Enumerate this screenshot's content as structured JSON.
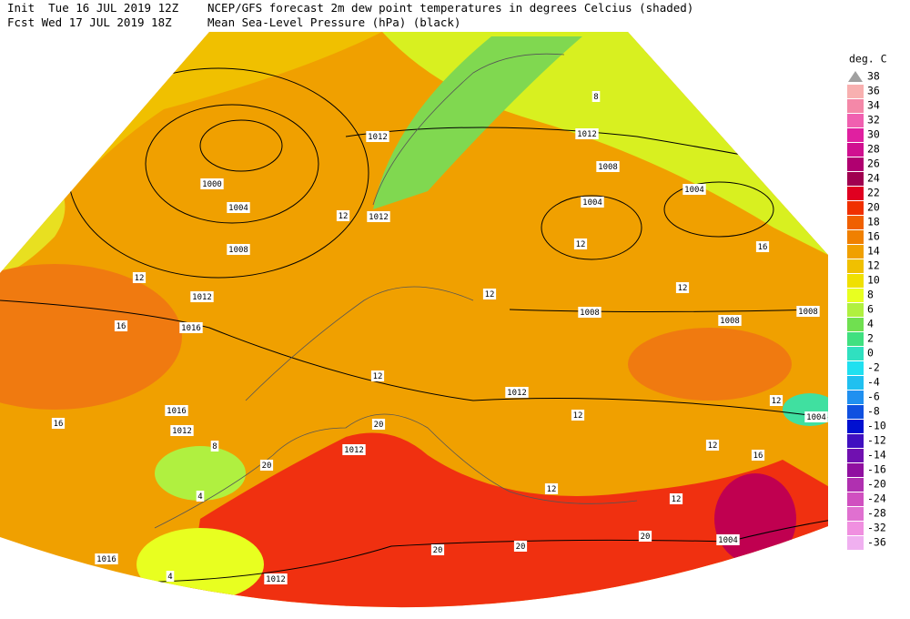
{
  "header": {
    "init": "Init  Tue 16 JUL 2019 12Z",
    "fcst": "Fcst Wed 17 JUL 2019 18Z",
    "title": "NCEP/GFS forecast 2m dew point temperatures in degrees Celcius (shaded)",
    "subtitle": "Mean Sea-Level Pressure (hPa) (black)"
  },
  "legend": {
    "title": "deg. C",
    "values": [
      38,
      36,
      34,
      32,
      30,
      28,
      26,
      24,
      22,
      20,
      18,
      16,
      14,
      12,
      10,
      8,
      6,
      4,
      2,
      0,
      -2,
      -4,
      -6,
      -8,
      -10,
      -12,
      -14,
      -16,
      -20,
      -24,
      -28,
      -32,
      -36
    ],
    "colors": [
      "#a0a0a0",
      "#f8b0b0",
      "#f488a8",
      "#f060b0",
      "#e020a0",
      "#d01090",
      "#b00070",
      "#a00050",
      "#e00020",
      "#f03000",
      "#f06000",
      "#f08000",
      "#f0a000",
      "#f0c000",
      "#f0e000",
      "#e8ff20",
      "#b0f040",
      "#70e050",
      "#40e080",
      "#30e0c0",
      "#20e0f0",
      "#20c0f0",
      "#2090f0",
      "#1050e0",
      "#0010d0",
      "#4010c0",
      "#7010b0",
      "#9010a0",
      "#b030b0",
      "#d050c0",
      "#e070d0",
      "#f090e0",
      "#f0b0f0"
    ]
  },
  "contour_labels": {
    "isobars": [
      "1012",
      "1012",
      "1008",
      "1000",
      "1004",
      "1004",
      "1004",
      "1008",
      "1012",
      "1016",
      "1012",
      "1008",
      "1008",
      "1008",
      "1016",
      "1012",
      "1012",
      "1012",
      "1004",
      "1016",
      "1012",
      "1004"
    ],
    "dew_point": [
      "12",
      "12",
      "16",
      "16",
      "12",
      "20",
      "20",
      "20",
      "20",
      "20",
      "8",
      "12",
      "12",
      "12",
      "16",
      "12",
      "12",
      "16",
      "12",
      "4",
      "4",
      "8",
      "12",
      "12"
    ]
  }
}
